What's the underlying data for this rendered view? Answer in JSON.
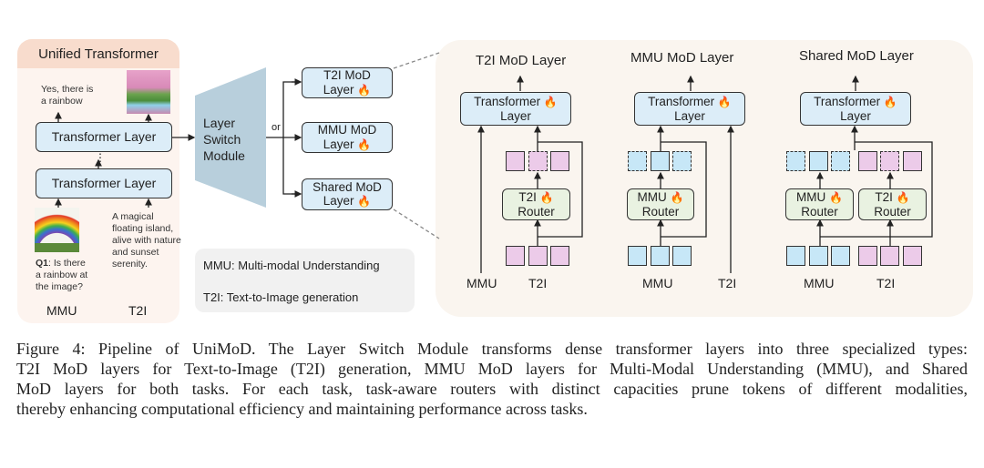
{
  "left_panel": {
    "title": "Unified Transformer",
    "output_text": "Yes, there is a rainbow",
    "layer_top": "Transformer Layer",
    "layer_bottom": "Transformer Layer",
    "ellipsis": "⋮",
    "question_bold": "Q1",
    "question_rest": ": Is there a rainbow at the image?",
    "prompt_text": "A magical floating island, alive with nature and sunset serenity.",
    "label_mmu": "MMU",
    "label_t2i": "T2I"
  },
  "switch": {
    "label": "Layer Switch Module",
    "or": "or",
    "options": [
      {
        "line1": "T2I MoD",
        "line2": "Layer"
      },
      {
        "line1": "MMU MoD",
        "line2": "Layer"
      },
      {
        "line1": "Shared MoD",
        "line2": "Layer"
      }
    ],
    "fire_icon": "🔥"
  },
  "legend": {
    "mmu": "MMU: Multi-modal Understanding",
    "t2i": "T2I: Text-to-Image generation"
  },
  "detail": {
    "panels": [
      {
        "title": "T2I MoD Layer",
        "layer": "Transformer",
        "layer2": "Layer",
        "router": "T2I",
        "router2": "Router",
        "in_mmu": "MMU",
        "in_t2i": "T2I"
      },
      {
        "title": "MMU MoD Layer",
        "layer": "Transformer",
        "layer2": "Layer",
        "router": "MMU",
        "router2": "Router",
        "in_mmu": "MMU",
        "in_t2i": "T2I"
      },
      {
        "title": "Shared MoD Layer",
        "layer": "Transformer",
        "layer2": "Layer",
        "router_a": "MMU",
        "router_b": "T2I",
        "router2": "Router",
        "in_mmu": "MMU",
        "in_t2i": "T2I"
      }
    ]
  },
  "colors": {
    "t2i_token": "#eccbe9",
    "mmu_token": "#c7e7f7",
    "layer_fill": "#dcedf8",
    "router_fill": "#e9f2e1",
    "left_header": "#f8dccd"
  },
  "caption": [
    "Figure 4: Pipeline of UniMoD. The Layer Switch Module transforms dense transformer layers into three specialized types:",
    "T2I MoD layers for Text-to-Image (T2I) generation, MMU MoD layers for Multi-Modal Understanding (MMU), and Shared",
    "MoD layers for both tasks. For each task, task-aware routers with distinct capacities prune tokens of different modalities,",
    "thereby enhancing computational efficiency and maintaining performance across tasks."
  ]
}
